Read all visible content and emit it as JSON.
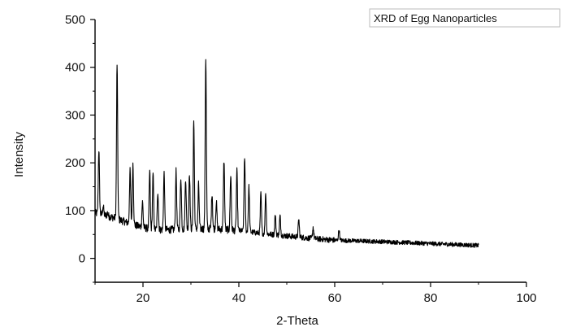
{
  "chart_data": {
    "type": "line",
    "xlabel": "2-Theta",
    "ylabel": "Intensity",
    "xlim": [
      10,
      100
    ],
    "ylim": [
      -50,
      500
    ],
    "x_ticks": [
      20,
      40,
      60,
      80,
      100
    ],
    "y_ticks": [
      0,
      100,
      200,
      300,
      400,
      500
    ],
    "grid": false,
    "legend_position": "top-right",
    "series": [
      {
        "name": "XRD of Egg Nanoparticles",
        "color": "#000000",
        "baseline": [
          [
            10,
            95
          ],
          [
            14,
            85
          ],
          [
            18,
            70
          ],
          [
            22,
            60
          ],
          [
            26,
            60
          ],
          [
            30,
            62
          ],
          [
            35,
            62
          ],
          [
            40,
            58
          ],
          [
            45,
            52
          ],
          [
            50,
            47
          ],
          [
            55,
            42
          ],
          [
            60,
            38
          ],
          [
            70,
            35
          ],
          [
            80,
            31
          ],
          [
            90,
            27
          ]
        ],
        "peaks": [
          {
            "x": 10.8,
            "y": 228
          },
          {
            "x": 11.7,
            "y": 110
          },
          {
            "x": 12.6,
            "y": 95
          },
          {
            "x": 14.6,
            "y": 408
          },
          {
            "x": 17.3,
            "y": 183
          },
          {
            "x": 17.9,
            "y": 198
          },
          {
            "x": 19.9,
            "y": 118
          },
          {
            "x": 21.4,
            "y": 182
          },
          {
            "x": 22.1,
            "y": 175
          },
          {
            "x": 23.1,
            "y": 140
          },
          {
            "x": 24.4,
            "y": 178
          },
          {
            "x": 26.9,
            "y": 182
          },
          {
            "x": 27.9,
            "y": 170
          },
          {
            "x": 28.9,
            "y": 168
          },
          {
            "x": 29.7,
            "y": 180
          },
          {
            "x": 30.6,
            "y": 288
          },
          {
            "x": 31.6,
            "y": 155
          },
          {
            "x": 33.1,
            "y": 421
          },
          {
            "x": 34.4,
            "y": 137
          },
          {
            "x": 35.3,
            "y": 118
          },
          {
            "x": 36.9,
            "y": 206
          },
          {
            "x": 38.3,
            "y": 175
          },
          {
            "x": 39.6,
            "y": 182
          },
          {
            "x": 41.2,
            "y": 213
          },
          {
            "x": 42.1,
            "y": 150
          },
          {
            "x": 44.6,
            "y": 135
          },
          {
            "x": 45.6,
            "y": 137
          },
          {
            "x": 47.6,
            "y": 90
          },
          {
            "x": 48.6,
            "y": 88
          },
          {
            "x": 52.5,
            "y": 82
          },
          {
            "x": 55.5,
            "y": 65
          },
          {
            "x": 60.9,
            "y": 60
          }
        ]
      }
    ]
  }
}
